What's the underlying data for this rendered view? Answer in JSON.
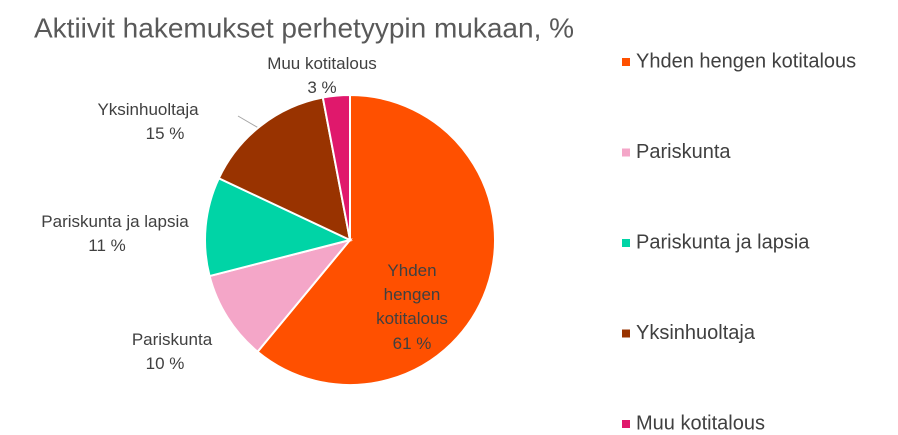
{
  "chart_data": {
    "type": "pie",
    "title": "Aktiivit hakemukset perhetyypin mukaan, %",
    "categories": [
      "Yhden hengen kotitalous",
      "Pariskunta",
      "Pariskunta ja lapsia",
      "Yksinhuoltaja",
      "Muu kotitalous"
    ],
    "values": [
      61,
      10,
      11,
      15,
      3
    ],
    "value_labels": [
      "61 %",
      "10 %",
      "11 %",
      "15 %",
      "3 %"
    ],
    "colors": [
      "#ff5000",
      "#f4a6c8",
      "#00d4a6",
      "#993300",
      "#e0186c"
    ],
    "legend": "right"
  }
}
